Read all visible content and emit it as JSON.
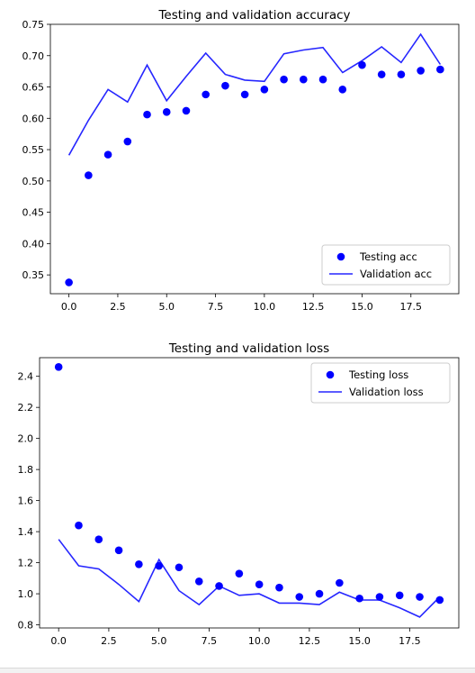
{
  "chart_data": [
    {
      "type": "line",
      "title": "Testing and validation accuracy",
      "xlabel": "",
      "ylabel": "",
      "xlim": [
        -0.95,
        19.95
      ],
      "ylim": [
        0.32,
        0.75
      ],
      "xticks": [
        0.0,
        2.5,
        5.0,
        7.5,
        10.0,
        12.5,
        15.0,
        17.5
      ],
      "xtick_labels": [
        "0.0",
        "2.5",
        "5.0",
        "7.5",
        "10.0",
        "12.5",
        "15.0",
        "17.5"
      ],
      "yticks": [
        0.35,
        0.4,
        0.45,
        0.5,
        0.55,
        0.6,
        0.65,
        0.7,
        0.75
      ],
      "ytick_labels": [
        "0.35",
        "0.40",
        "0.45",
        "0.50",
        "0.55",
        "0.60",
        "0.65",
        "0.70",
        "0.75"
      ],
      "legend_position": "lower-right",
      "grid": false,
      "series": [
        {
          "name": "Testing acc",
          "style": "points",
          "color": "#0000ff",
          "x": [
            0,
            1,
            2,
            3,
            4,
            5,
            6,
            7,
            8,
            9,
            10,
            11,
            12,
            13,
            14,
            15,
            16,
            17,
            18,
            19
          ],
          "y": [
            0.338,
            0.509,
            0.542,
            0.563,
            0.606,
            0.61,
            0.612,
            0.638,
            0.652,
            0.638,
            0.646,
            0.662,
            0.662,
            0.662,
            0.646,
            0.685,
            0.67,
            0.67,
            0.676,
            0.678
          ]
        },
        {
          "name": "Validation acc",
          "style": "line",
          "color": "#0000ff",
          "x": [
            0,
            1,
            2,
            3,
            4,
            5,
            6,
            7,
            8,
            9,
            10,
            11,
            12,
            13,
            14,
            15,
            16,
            17,
            18,
            19
          ],
          "y": [
            0.541,
            0.597,
            0.646,
            0.626,
            0.685,
            0.628,
            0.667,
            0.704,
            0.67,
            0.661,
            0.659,
            0.703,
            0.709,
            0.713,
            0.673,
            0.692,
            0.714,
            0.689,
            0.734,
            0.686
          ]
        }
      ]
    },
    {
      "type": "line",
      "title": "Testing and validation loss",
      "xlabel": "",
      "ylabel": "",
      "xlim": [
        -0.95,
        19.95
      ],
      "ylim": [
        0.78,
        2.52
      ],
      "xticks": [
        0.0,
        2.5,
        5.0,
        7.5,
        10.0,
        12.5,
        15.0,
        17.5
      ],
      "xtick_labels": [
        "0.0",
        "2.5",
        "5.0",
        "7.5",
        "10.0",
        "12.5",
        "15.0",
        "17.5"
      ],
      "yticks": [
        0.8,
        1.0,
        1.2,
        1.4,
        1.6,
        1.8,
        2.0,
        2.2,
        2.4
      ],
      "ytick_labels": [
        "0.8",
        "1.0",
        "1.2",
        "1.4",
        "1.6",
        "1.8",
        "2.0",
        "2.2",
        "2.4"
      ],
      "legend_position": "upper-right",
      "grid": false,
      "series": [
        {
          "name": "Testing loss",
          "style": "points",
          "color": "#0000ff",
          "x": [
            0,
            1,
            2,
            3,
            4,
            5,
            6,
            7,
            8,
            9,
            10,
            11,
            12,
            13,
            14,
            15,
            16,
            17,
            18,
            19
          ],
          "y": [
            2.46,
            1.44,
            1.35,
            1.28,
            1.19,
            1.18,
            1.17,
            1.08,
            1.05,
            1.13,
            1.06,
            1.04,
            0.98,
            1.0,
            1.07,
            0.97,
            0.98,
            0.99,
            0.98,
            0.96
          ]
        },
        {
          "name": "Validation loss",
          "style": "line",
          "color": "#0000ff",
          "x": [
            0,
            1,
            2,
            3,
            4,
            5,
            6,
            7,
            8,
            9,
            10,
            11,
            12,
            13,
            14,
            15,
            16,
            17,
            18,
            19
          ],
          "y": [
            1.35,
            1.18,
            1.16,
            1.06,
            0.95,
            1.22,
            1.02,
            0.93,
            1.05,
            0.99,
            1.0,
            0.94,
            0.94,
            0.93,
            1.01,
            0.96,
            0.96,
            0.91,
            0.85,
            0.98
          ]
        }
      ]
    }
  ]
}
